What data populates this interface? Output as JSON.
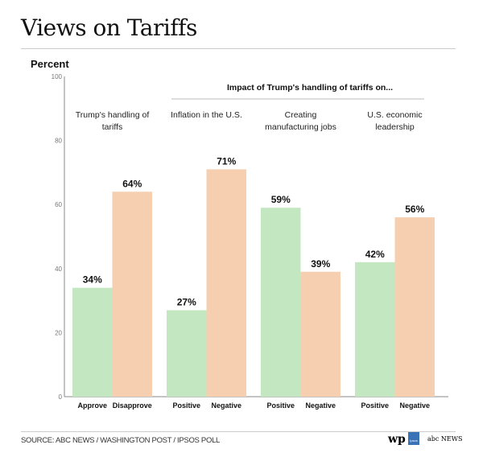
{
  "title": "Views on Tariffs",
  "source": "SOURCE: ABC NEWS / WASHINGTON POST / IPSOS POLL",
  "logos": [
    "wp",
    "Ipsos",
    "abc NEWS"
  ],
  "colors": {
    "approve_positive": "#c3e8c1",
    "disapprove_negative": "#f5cfb0"
  },
  "chart_data": {
    "type": "bar",
    "ylabel": "Percent",
    "ylim": [
      0,
      100
    ],
    "yticks": [
      0,
      20,
      40,
      60,
      80,
      100
    ],
    "grid": false,
    "supergroup_label": "Impact of Trump's handling of tariffs on...",
    "groups": [
      {
        "label": "Trump's handling of tariffs",
        "bars": [
          {
            "label": "Approve",
            "value": 34
          },
          {
            "label": "Disapprove",
            "value": 64
          }
        ]
      },
      {
        "label": "Inflation in the U.S.",
        "bars": [
          {
            "label": "Positive",
            "value": 27
          },
          {
            "label": "Negative",
            "value": 71
          }
        ]
      },
      {
        "label": "Creating manufacturing jobs",
        "bars": [
          {
            "label": "Positive",
            "value": 59
          },
          {
            "label": "Negative",
            "value": 39
          }
        ]
      },
      {
        "label": "U.S. economic leadership",
        "bars": [
          {
            "label": "Positive",
            "value": 42
          },
          {
            "label": "Negative",
            "value": 56
          }
        ]
      }
    ]
  }
}
